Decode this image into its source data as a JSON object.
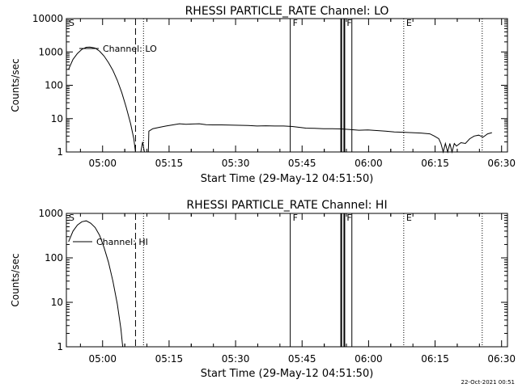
{
  "chart_data": [
    {
      "type": "line",
      "title": "RHESSI PARTICLE_RATE Channel: LO",
      "xlabel": "Start Time (29-May-12 04:51:50)",
      "ylabel": "Counts/sec",
      "yscale": "log",
      "x_unit": "minutes after 04:51:50",
      "xlim": [
        0,
        99.5
      ],
      "ylim": [
        1,
        10000
      ],
      "x_ticks": [
        {
          "x": 8.17,
          "label": "05:00"
        },
        {
          "x": 23.17,
          "label": "05:15"
        },
        {
          "x": 38.17,
          "label": "05:30"
        },
        {
          "x": 53.17,
          "label": "05:45"
        },
        {
          "x": 68.17,
          "label": "06:00"
        },
        {
          "x": 83.17,
          "label": "06:15"
        },
        {
          "x": 98.17,
          "label": "06:30"
        }
      ],
      "y_ticks": [
        {
          "y": 1,
          "label": "1"
        },
        {
          "y": 10,
          "label": "10"
        },
        {
          "y": 100,
          "label": "100"
        },
        {
          "y": 1000,
          "label": "1000"
        },
        {
          "y": 10000,
          "label": "10000"
        }
      ],
      "legend": "Channel: LO",
      "legend_position": "top-left",
      "series": [
        {
          "name": "Channel: LO",
          "segments": [
            [
              [
                0.5,
                300
              ],
              [
                1.5,
                600
              ],
              [
                2.5,
                900
              ],
              [
                3.5,
                1200
              ],
              [
                4.5,
                1380
              ],
              [
                5.3,
                1400
              ],
              [
                6.5,
                1300
              ],
              [
                7.5,
                1050
              ],
              [
                8.5,
                750
              ],
              [
                9.5,
                480
              ],
              [
                10.5,
                280
              ],
              [
                11.5,
                140
              ],
              [
                12.5,
                60
              ],
              [
                13.5,
                22
              ],
              [
                14.5,
                7
              ],
              [
                15.2,
                2.5
              ],
              [
                15.6,
                1
              ]
            ],
            [
              [
                16.8,
                1
              ],
              [
                17.2,
                2
              ],
              [
                17.6,
                1
              ]
            ],
            [
              [
                18.5,
                1
              ],
              [
                18.6,
                4.2
              ],
              [
                19.5,
                5
              ],
              [
                21,
                5.5
              ],
              [
                22.5,
                6
              ],
              [
                24,
                6.5
              ],
              [
                25.5,
                7
              ],
              [
                27,
                6.8
              ],
              [
                28.5,
                6.9
              ],
              [
                30,
                7
              ],
              [
                31.5,
                6.6
              ],
              [
                33,
                6.5
              ],
              [
                35,
                6.5
              ],
              [
                37,
                6.4
              ],
              [
                39,
                6.3
              ],
              [
                41,
                6.2
              ],
              [
                43,
                6
              ],
              [
                45,
                6.1
              ],
              [
                47,
                6
              ],
              [
                49,
                6
              ],
              [
                51,
                5.8
              ],
              [
                52.5,
                5.5
              ],
              [
                54,
                5.2
              ],
              [
                56,
                5.1
              ],
              [
                58,
                5
              ],
              [
                60,
                5
              ],
              [
                62,
                4.9
              ],
              [
                64,
                4.7
              ],
              [
                66,
                4.5
              ],
              [
                68,
                4.6
              ],
              [
                70,
                4.4
              ],
              [
                72,
                4.2
              ],
              [
                74,
                4
              ],
              [
                76,
                3.9
              ],
              [
                78,
                3.8
              ],
              [
                80,
                3.7
              ],
              [
                82,
                3.5
              ],
              [
                83,
                3
              ],
              [
                84,
                2.5
              ],
              [
                84.5,
                1.8
              ],
              [
                85,
                1
              ],
              [
                85.5,
                1.8
              ],
              [
                86,
                1
              ],
              [
                86.5,
                1.8
              ],
              [
                87,
                1
              ],
              [
                87.5,
                1.8
              ],
              [
                88,
                1.5
              ],
              [
                89,
                1.9
              ],
              [
                90,
                1.8
              ],
              [
                91,
                2.5
              ],
              [
                92,
                3
              ],
              [
                93,
                3.2
              ],
              [
                94,
                2.8
              ],
              [
                95,
                3.5
              ],
              [
                96,
                3.8
              ]
            ]
          ]
        }
      ],
      "annotations": [
        {
          "letter": "S",
          "x": 0.0
        },
        {
          "letter": "F",
          "x": 50.5
        },
        {
          "letter": "F",
          "x": 62.7
        },
        {
          "letter": "E",
          "x": 76.1
        }
      ],
      "vertical_lines": [
        {
          "x": 15.6,
          "style": "dashed"
        },
        {
          "x": 17.4,
          "style": "dotted"
        },
        {
          "x": 50.5,
          "style": "solid"
        },
        {
          "x": 62.0,
          "style": "thick"
        },
        {
          "x": 62.7,
          "style": "thick"
        },
        {
          "x": 64.4,
          "style": "solid"
        },
        {
          "x": 76.1,
          "style": "dotted"
        },
        {
          "x": 93.8,
          "style": "dotted"
        }
      ]
    },
    {
      "type": "line",
      "title": "RHESSI PARTICLE_RATE Channel: HI",
      "xlabel": "Start Time (29-May-12 04:51:50)",
      "ylabel": "Counts/sec",
      "yscale": "log",
      "x_unit": "minutes after 04:51:50",
      "xlim": [
        0,
        99.5
      ],
      "ylim": [
        1,
        1000
      ],
      "x_ticks": [
        {
          "x": 8.17,
          "label": "05:00"
        },
        {
          "x": 23.17,
          "label": "05:15"
        },
        {
          "x": 38.17,
          "label": "05:30"
        },
        {
          "x": 53.17,
          "label": "05:45"
        },
        {
          "x": 68.17,
          "label": "06:00"
        },
        {
          "x": 83.17,
          "label": "06:15"
        },
        {
          "x": 98.17,
          "label": "06:30"
        }
      ],
      "y_ticks": [
        {
          "y": 1,
          "label": "1"
        },
        {
          "y": 10,
          "label": "10"
        },
        {
          "y": 100,
          "label": "100"
        },
        {
          "y": 1000,
          "label": "1000"
        }
      ],
      "legend": "Channel: HI",
      "legend_position": "top-left",
      "series": [
        {
          "name": "Channel: HI",
          "segments": [
            [
              [
                0.5,
                230
              ],
              [
                1.5,
                400
              ],
              [
                2.5,
                550
              ],
              [
                3.5,
                650
              ],
              [
                4.5,
                680
              ],
              [
                5.5,
                600
              ],
              [
                6.5,
                480
              ],
              [
                7.5,
                320
              ],
              [
                8.5,
                170
              ],
              [
                9.5,
                80
              ],
              [
                10.5,
                30
              ],
              [
                11.5,
                9
              ],
              [
                12.3,
                2.5
              ],
              [
                12.7,
                1
              ]
            ]
          ]
        }
      ],
      "annotations": [
        {
          "letter": "S",
          "x": 0.0
        },
        {
          "letter": "F",
          "x": 50.5
        },
        {
          "letter": "F",
          "x": 62.7
        },
        {
          "letter": "E",
          "x": 76.1
        }
      ],
      "vertical_lines": [
        {
          "x": 15.6,
          "style": "dashed"
        },
        {
          "x": 17.4,
          "style": "dotted"
        },
        {
          "x": 50.5,
          "style": "solid"
        },
        {
          "x": 62.0,
          "style": "thick"
        },
        {
          "x": 62.7,
          "style": "thick"
        },
        {
          "x": 64.4,
          "style": "solid"
        },
        {
          "x": 76.1,
          "style": "dotted"
        },
        {
          "x": 93.8,
          "style": "dotted"
        }
      ]
    }
  ],
  "footer": {
    "timestamp": "22-Oct-2021 00:51"
  }
}
